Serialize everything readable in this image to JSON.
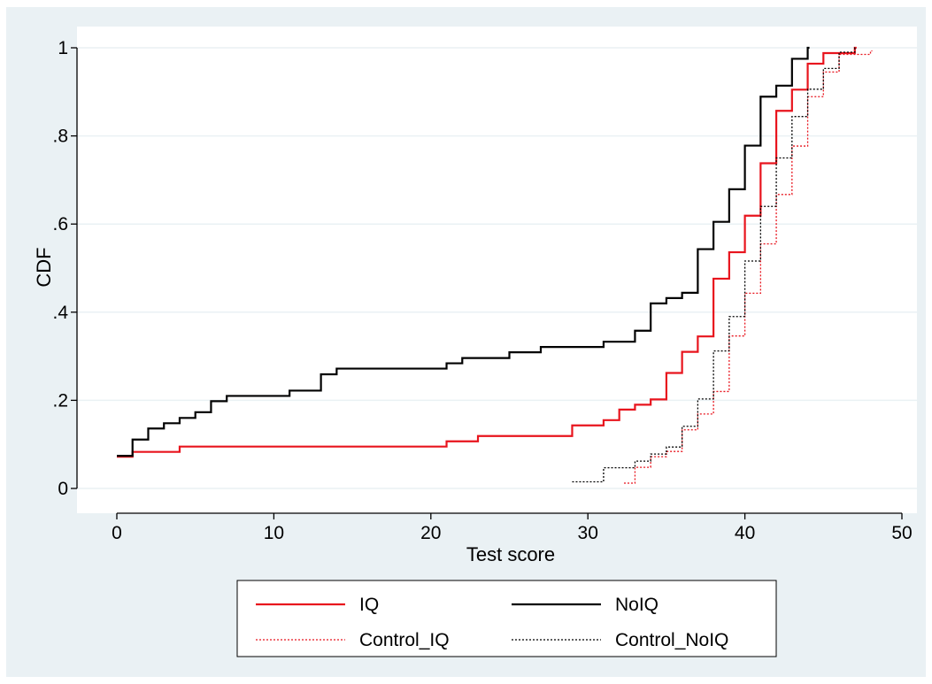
{
  "chart_data": {
    "type": "line",
    "step": true,
    "xlabel": "Test score",
    "ylabel": "CDF",
    "xlim": [
      0,
      50
    ],
    "ylim": [
      0,
      1
    ],
    "xticks": [
      {
        "v": 0,
        "label": "0"
      },
      {
        "v": 10,
        "label": "10"
      },
      {
        "v": 20,
        "label": "20"
      },
      {
        "v": 30,
        "label": "30"
      },
      {
        "v": 40,
        "label": "40"
      },
      {
        "v": 50,
        "label": "50"
      }
    ],
    "yticks": [
      {
        "v": 0,
        "label": "0"
      },
      {
        "v": 0.2,
        "label": ".2"
      },
      {
        "v": 0.4,
        "label": ".4"
      },
      {
        "v": 0.6,
        "label": ".6"
      },
      {
        "v": 0.8,
        "label": ".8"
      },
      {
        "v": 1,
        "label": "1"
      }
    ],
    "grid": "horizontal",
    "legend_position": "bottom",
    "series": [
      {
        "name": "IQ",
        "color": "#e8141d",
        "dash": "solid",
        "points": [
          [
            0,
            0.072
          ],
          [
            1,
            0.083
          ],
          [
            4,
            0.095
          ],
          [
            21,
            0.107
          ],
          [
            23,
            0.119
          ],
          [
            29,
            0.143
          ],
          [
            31,
            0.155
          ],
          [
            32,
            0.179
          ],
          [
            33,
            0.19
          ],
          [
            34,
            0.202
          ],
          [
            35,
            0.262
          ],
          [
            36,
            0.31
          ],
          [
            37,
            0.345
          ],
          [
            38,
            0.476
          ],
          [
            39,
            0.536
          ],
          [
            40,
            0.619
          ],
          [
            41,
            0.738
          ],
          [
            42,
            0.857
          ],
          [
            43,
            0.905
          ],
          [
            44,
            0.964
          ],
          [
            45,
            0.988
          ],
          [
            47,
            1.0
          ]
        ]
      },
      {
        "name": "NoIQ",
        "color": "#000000",
        "dash": "solid",
        "points": [
          [
            0,
            0.074
          ],
          [
            1,
            0.111
          ],
          [
            2,
            0.136
          ],
          [
            3,
            0.148
          ],
          [
            4,
            0.16
          ],
          [
            5,
            0.173
          ],
          [
            6,
            0.198
          ],
          [
            7,
            0.21
          ],
          [
            11,
            0.222
          ],
          [
            13,
            0.259
          ],
          [
            14,
            0.272
          ],
          [
            21,
            0.284
          ],
          [
            22,
            0.296
          ],
          [
            25,
            0.309
          ],
          [
            27,
            0.321
          ],
          [
            31,
            0.333
          ],
          [
            33,
            0.358
          ],
          [
            34,
            0.42
          ],
          [
            35,
            0.432
          ],
          [
            36,
            0.444
          ],
          [
            37,
            0.543
          ],
          [
            38,
            0.605
          ],
          [
            39,
            0.679
          ],
          [
            40,
            0.778
          ],
          [
            41,
            0.889
          ],
          [
            42,
            0.914
          ],
          [
            43,
            0.975
          ],
          [
            44,
            1.0
          ]
        ]
      },
      {
        "name": "Control_IQ",
        "color": "#e8141d",
        "dash": "dotted",
        "points": [
          [
            32.3,
            0.012
          ],
          [
            33,
            0.048
          ],
          [
            34,
            0.072
          ],
          [
            35,
            0.084
          ],
          [
            36,
            0.133
          ],
          [
            37,
            0.169
          ],
          [
            38,
            0.22
          ],
          [
            39,
            0.346
          ],
          [
            40,
            0.443
          ],
          [
            41,
            0.555
          ],
          [
            42,
            0.667
          ],
          [
            43,
            0.777
          ],
          [
            44,
            0.889
          ],
          [
            45,
            0.945
          ],
          [
            46,
            0.985
          ],
          [
            48,
            0.993
          ]
        ]
      },
      {
        "name": "Control_NoIQ",
        "color": "#000000",
        "dash": "dotted",
        "points": [
          [
            29,
            0.015
          ],
          [
            31,
            0.047
          ],
          [
            33,
            0.062
          ],
          [
            34,
            0.078
          ],
          [
            35,
            0.094
          ],
          [
            36,
            0.141
          ],
          [
            37,
            0.203
          ],
          [
            38,
            0.312
          ],
          [
            39,
            0.39
          ],
          [
            40,
            0.516
          ],
          [
            41,
            0.64
          ],
          [
            42,
            0.75
          ],
          [
            43,
            0.844
          ],
          [
            44,
            0.906
          ],
          [
            45,
            0.953
          ],
          [
            46,
            0.99
          ],
          [
            47,
            1.0
          ]
        ]
      }
    ]
  }
}
